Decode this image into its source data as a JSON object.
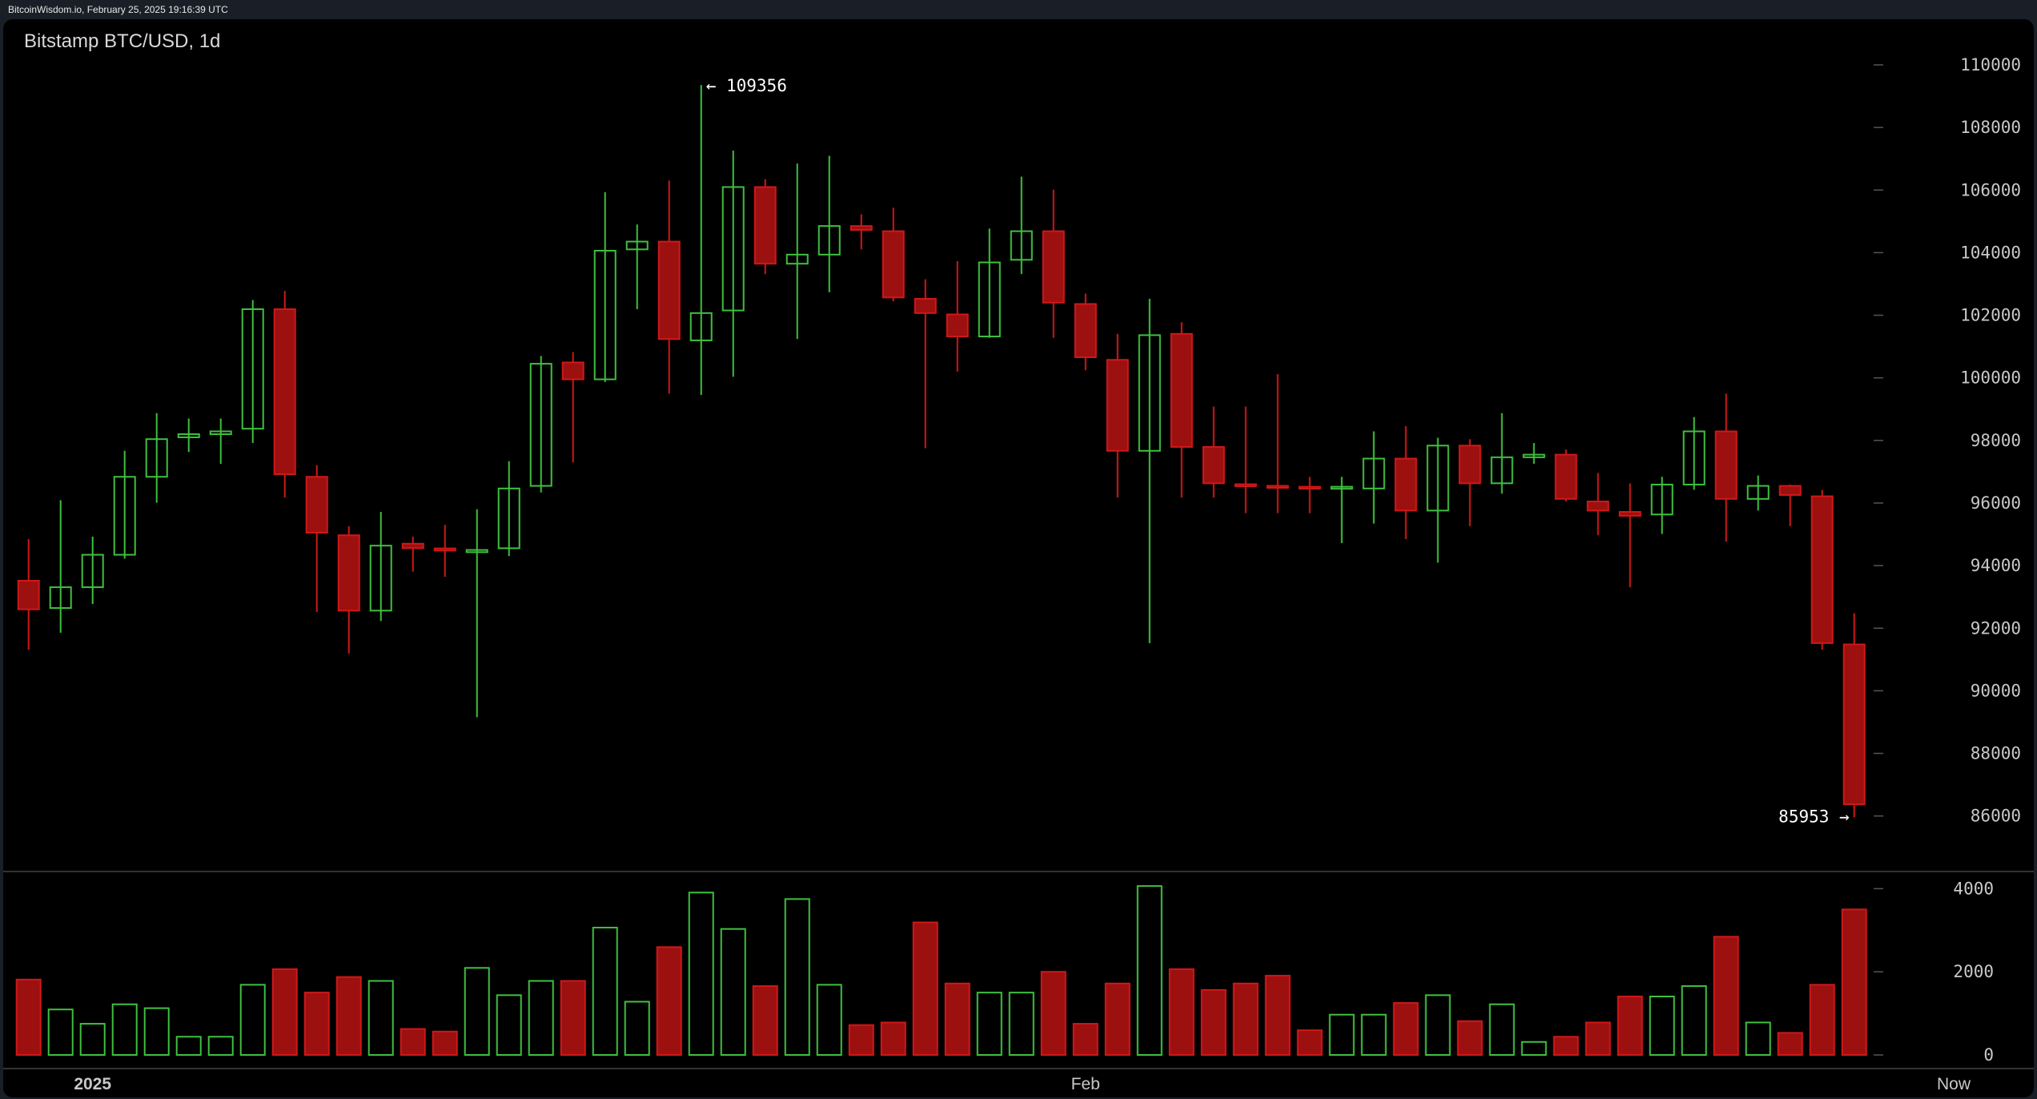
{
  "header": {
    "source_line": "BitcoinWisdom.io, February 25, 2025 19:16:39 UTC"
  },
  "chart_title": "Bitstamp BTC/USD, 1d",
  "colors": {
    "up": "#3fc03f",
    "down_fill": "#9c1010",
    "down_stroke": "#d01818",
    "background": "#000000"
  },
  "chart_data": {
    "type": "candlestick",
    "title": "Bitstamp BTC/USD, 1d",
    "x_tick_labels": [
      {
        "label": "2025",
        "date": "2025-01-01"
      },
      {
        "label": "Feb",
        "date": "2025-02-01"
      },
      {
        "label": "Now",
        "date": "2025-02-26"
      }
    ],
    "price_ticks": [
      86000,
      88000,
      90000,
      92000,
      94000,
      96000,
      98000,
      100000,
      102000,
      104000,
      106000,
      108000,
      110000
    ],
    "volume_ticks": [
      0,
      2000,
      4000
    ],
    "ylim": [
      85000,
      110500
    ],
    "volume_ylim": [
      0,
      4200
    ],
    "annotations": {
      "high_label": "← 109356",
      "low_label": "85953 →",
      "high": 109356,
      "low": 85953
    },
    "start_date": "2024-12-30",
    "ohlc": [
      [
        93517,
        92603,
        94845,
        91316
      ],
      [
        92645,
        93310,
        96090,
        91856
      ],
      [
        93310,
        94347,
        94928,
        92770
      ],
      [
        94347,
        96838,
        97669,
        94222
      ],
      [
        96838,
        98042,
        98873,
        96008
      ],
      [
        98100,
        98200,
        98700,
        97630
      ],
      [
        98200,
        98290,
        98700,
        97250
      ],
      [
        98375,
        102194,
        102485,
        97918
      ],
      [
        102194,
        96921,
        102776,
        96174
      ],
      [
        96838,
        95053,
        97212,
        92520
      ],
      [
        94970,
        92562,
        95260,
        91192
      ],
      [
        92562,
        94638,
        95717,
        92230
      ],
      [
        94700,
        94560,
        94928,
        93807
      ],
      [
        94550,
        94480,
        95302,
        93641
      ],
      [
        94430,
        94500,
        95800,
        89157
      ],
      [
        94555,
        96465,
        97336,
        94305
      ],
      [
        96548,
        100450,
        100700,
        96340
      ],
      [
        100492,
        99952,
        100824,
        97295
      ],
      [
        99952,
        104063,
        105931,
        99869
      ],
      [
        104105,
        104354,
        104900,
        102194
      ],
      [
        104354,
        101239,
        106304,
        99495
      ],
      [
        101197,
        102070,
        109356,
        99453
      ],
      [
        102153,
        106097,
        107260,
        100035
      ],
      [
        106097,
        103647,
        106346,
        103315
      ],
      [
        103647,
        103938,
        106844,
        101239
      ],
      [
        103938,
        104851,
        107094,
        102734
      ],
      [
        104851,
        104727,
        105225,
        104105
      ],
      [
        104686,
        102568,
        105433,
        102443
      ],
      [
        102526,
        102070,
        103149,
        97752
      ],
      [
        102028,
        101322,
        103730,
        100201
      ],
      [
        101322,
        103689,
        104768,
        101280
      ],
      [
        103772,
        104686,
        106429,
        103315
      ],
      [
        104686,
        102402,
        106014,
        101280
      ],
      [
        102360,
        100658,
        102693,
        100243
      ],
      [
        100575,
        97669,
        101405,
        96174
      ],
      [
        97669,
        101364,
        102526,
        91524
      ],
      [
        101405,
        97793,
        101779,
        96174
      ],
      [
        97793,
        96631,
        99080,
        96174
      ],
      [
        96600,
        96550,
        99080,
        95675
      ],
      [
        96550,
        96500,
        100118,
        95675
      ],
      [
        96520,
        96480,
        96838,
        95675
      ],
      [
        96470,
        96520,
        96838,
        94720
      ],
      [
        96465,
        97420,
        98290,
        95343
      ],
      [
        97420,
        95759,
        98458,
        94845
      ],
      [
        95759,
        97835,
        98084,
        94097
      ],
      [
        97835,
        96631,
        98042,
        95260
      ],
      [
        96631,
        97462,
        98873,
        96299
      ],
      [
        97462,
        97545,
        97918,
        97253
      ],
      [
        97545,
        96132,
        97710,
        96050
      ],
      [
        96050,
        95759,
        96963,
        94970
      ],
      [
        95717,
        95593,
        96631,
        93310
      ],
      [
        95634,
        96590,
        96838,
        95011
      ],
      [
        96590,
        98290,
        98748,
        96423
      ],
      [
        98290,
        96132,
        99495,
        94762
      ],
      [
        96132,
        96548,
        96880,
        95759
      ],
      [
        96548,
        96257,
        96590,
        95260
      ],
      [
        96215,
        91524,
        96423,
        91316
      ],
      [
        91482,
        86375,
        92479,
        85953
      ]
    ],
    "volume": [
      1813,
      1094,
      750,
      1219,
      1125,
      438,
      438,
      1688,
      2063,
      1500,
      1875,
      1781,
      625,
      563,
      2094,
      1438,
      1781,
      1781,
      3063,
      1281,
      2594,
      3906,
      3031,
      1656,
      3750,
      1688,
      719,
      781,
      3188,
      1719,
      1500,
      1500,
      2000,
      750,
      1719,
      4063,
      2063,
      1563,
      1719,
      1906,
      594,
      969,
      969,
      1250,
      1438,
      813,
      1219,
      313,
      438,
      781,
      1406,
      1406,
      1656,
      2844,
      781,
      531,
      1688,
      3500
    ]
  }
}
